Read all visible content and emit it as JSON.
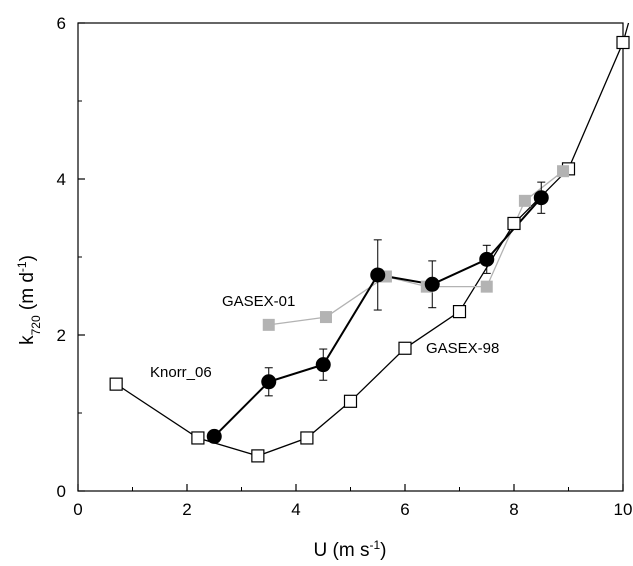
{
  "chart_data": {
    "type": "line",
    "title": "",
    "xlabel": {
      "base": "U (m s",
      "sup": "-1",
      "tail": ")"
    },
    "ylabel": {
      "base": "k",
      "sub": "720",
      "mid": " (m d",
      "sup": "-1",
      "tail": ")"
    },
    "xlim": [
      0,
      10
    ],
    "ylim": [
      0,
      6
    ],
    "xticks": [
      0,
      2,
      4,
      6,
      8,
      10
    ],
    "yticks": [
      0,
      2,
      4,
      6
    ],
    "grid": false,
    "series": [
      {
        "name": "GASEX-98",
        "color": "#000000",
        "marker": "open-square",
        "x": [
          0.7,
          2.2,
          3.3,
          4.2,
          5.0,
          6.0,
          7.0,
          8.0,
          9.0,
          10.0,
          10.1
        ],
        "y": [
          1.37,
          0.68,
          0.45,
          0.68,
          1.15,
          1.83,
          2.3,
          3.43,
          4.13,
          5.75,
          6.0
        ],
        "open_end": true
      },
      {
        "name": "GASEX-01",
        "color": "#b3b3b3",
        "marker": "filled-square",
        "x": [
          3.5,
          4.55,
          5.65,
          6.4,
          7.5,
          8.2,
          8.9
        ],
        "y": [
          2.13,
          2.23,
          2.75,
          2.62,
          2.62,
          3.72,
          4.1
        ]
      },
      {
        "name": "Knorr_06",
        "color": "#000000",
        "marker": "filled-circle",
        "x": [
          2.5,
          3.5,
          4.5,
          5.5,
          6.5,
          7.5,
          8.5
        ],
        "y": [
          0.7,
          1.4,
          1.62,
          2.77,
          2.65,
          2.97,
          3.76
        ],
        "err": [
          0,
          0.18,
          0.2,
          0.45,
          0.3,
          0.18,
          0.2
        ]
      }
    ]
  }
}
